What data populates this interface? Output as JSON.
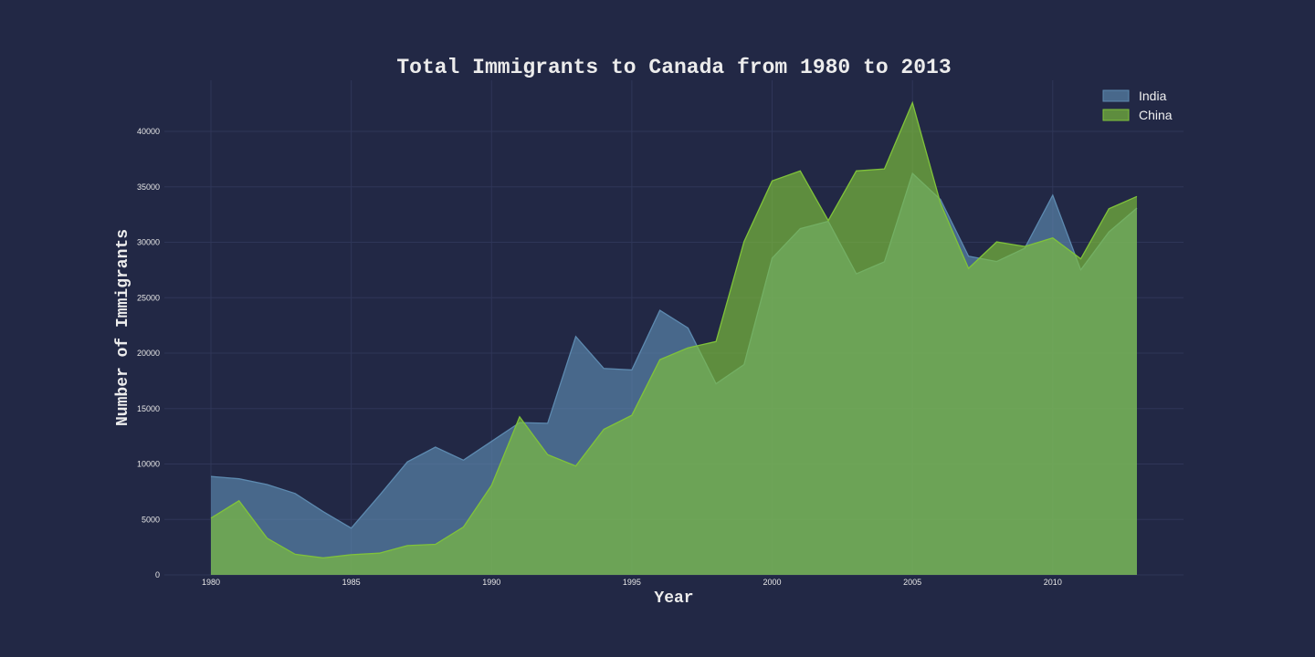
{
  "chart_data": {
    "type": "area",
    "title": "Total Immigrants to Canada from 1980 to 2013",
    "xlabel": "Year",
    "ylabel": "Number of Immigrants",
    "x": [
      1980,
      1981,
      1982,
      1983,
      1984,
      1985,
      1986,
      1987,
      1988,
      1989,
      1990,
      1991,
      1992,
      1993,
      1994,
      1995,
      1996,
      1997,
      1998,
      1999,
      2000,
      2001,
      2002,
      2003,
      2004,
      2005,
      2006,
      2007,
      2008,
      2009,
      2010,
      2011,
      2012,
      2013
    ],
    "xlim": [
      1980,
      2013
    ],
    "ylim": [
      0,
      45000
    ],
    "x_ticks": [
      1980,
      1985,
      1990,
      1995,
      2000,
      2005,
      2010
    ],
    "y_ticks": [
      0,
      5000,
      10000,
      15000,
      20000,
      25000,
      30000,
      35000,
      40000
    ],
    "grid": true,
    "legend_position": "top-right",
    "series": [
      {
        "name": "India",
        "color": "#5d8ab0",
        "values": [
          8880,
          8670,
          8147,
          7338,
          5704,
          4211,
          7150,
          10189,
          11522,
          10343,
          12041,
          13734,
          13673,
          21496,
          18620,
          18489,
          23859,
          22268,
          17241,
          18974,
          28572,
          31223,
          31889,
          27155,
          28235,
          36210,
          33848,
          28742,
          28261,
          29456,
          34235,
          27509,
          30933,
          33087
        ]
      },
      {
        "name": "China",
        "color": "#80c33a",
        "values": [
          5123,
          6682,
          3308,
          1863,
          1527,
          1816,
          1960,
          2643,
          2758,
          4323,
          8076,
          14255,
          10846,
          9817,
          13128,
          14398,
          19415,
          20475,
          21049,
          30069,
          35529,
          36434,
          31961,
          36439,
          36619,
          42584,
          33518,
          27642,
          30037,
          29622,
          30391,
          28502,
          33024,
          34129
        ]
      }
    ]
  }
}
